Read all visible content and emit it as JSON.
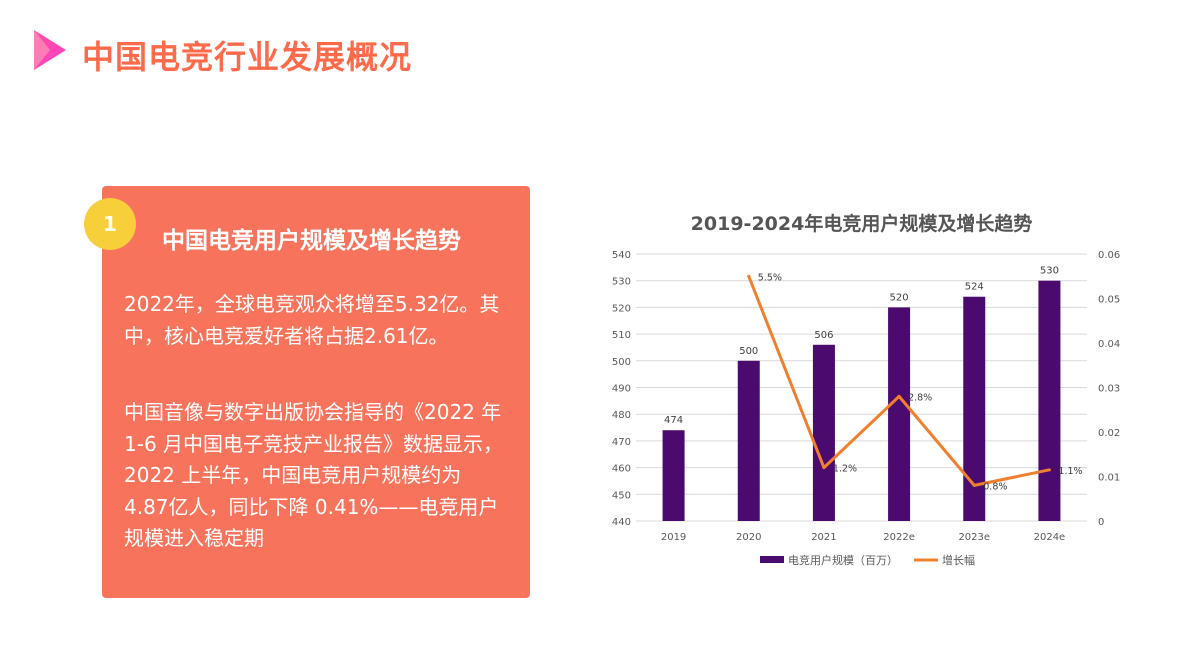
{
  "header": {
    "title": "中国电竞行业发展概况",
    "icon": "play-triangle-icon"
  },
  "panel": {
    "badge_number": "1",
    "heading": "中国电竞用户规模及增长趋势",
    "paragraph1": "2022年，全球电竞观众将增至5.32亿。其中，核心电竞爱好者将占据2.61亿。",
    "paragraph2": "中国音像与数字出版协会指导的《2022 年 1-6 月中国电子竞技产业报告》数据显示，2022 上半年，中国电竞用户规模约为 4.87亿人，同比下降 0.41%——电竞用户规模进入稳定期",
    "colors": {
      "panel": "#f8735b",
      "badge": "#f6cf3b",
      "title": "#ff6a4a"
    }
  },
  "chart_data": {
    "type": "bar",
    "title": "2019-2024年电竞用户规模及增长趋势",
    "categories": [
      "2019",
      "2020",
      "2021",
      "2022e",
      "2023e",
      "2024e"
    ],
    "series": [
      {
        "name": "电竞用户规模（百万）",
        "type": "bar",
        "axis": "left",
        "color": "#4b0a6e",
        "values": [
          474,
          500,
          506,
          520,
          524,
          530
        ],
        "labels": [
          "474",
          "500",
          "506",
          "520",
          "524",
          "530"
        ]
      },
      {
        "name": "增长幅",
        "type": "line",
        "axis": "right",
        "color": "#f07f2e",
        "values": [
          null,
          0.055,
          0.012,
          0.028,
          0.008,
          0.0115
        ],
        "labels": [
          "",
          "5.5%",
          "1.2%",
          "2.8%",
          "0.8%",
          "1.1%"
        ]
      }
    ],
    "y_left": {
      "min": 440,
      "max": 540,
      "ticks": [
        "440",
        "450",
        "460",
        "470",
        "480",
        "490",
        "500",
        "510",
        "520",
        "530",
        "540"
      ]
    },
    "y_right": {
      "min": 0,
      "max": 0.06,
      "ticks": [
        "0",
        "0.01",
        "0.02",
        "0.03",
        "0.04",
        "0.05",
        "0.06"
      ]
    },
    "grid": true,
    "legend_position": "bottom"
  }
}
